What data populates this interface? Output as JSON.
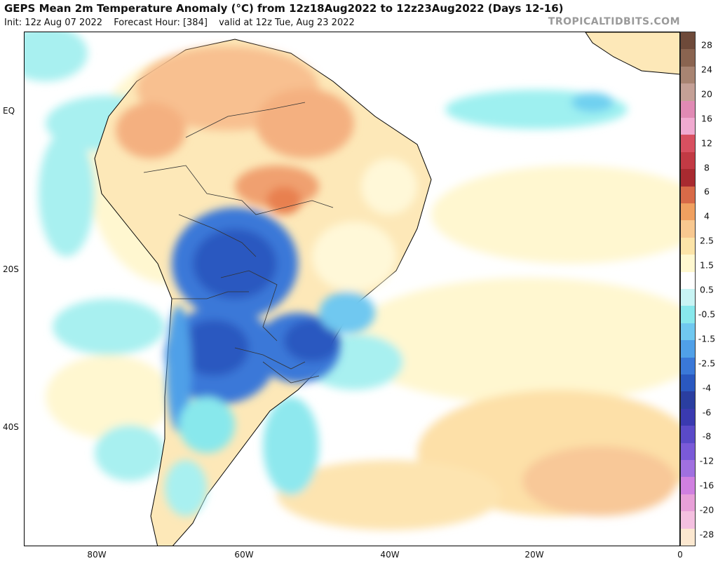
{
  "title": "GEPS Mean 2m Temperature Anomaly (°C) from 12z18Aug2022 to 12z23Aug2022 (Days 12-16)",
  "init": "Init: 12z Aug 07 2022",
  "forecast_hour": "Forecast Hour: [384]",
  "valid": "valid at 12z Tue, Aug 23 2022",
  "brand": "TROPICALTIDBITS.COM",
  "lat_labels": [
    "EQ",
    "20S",
    "40S"
  ],
  "lon_labels": [
    "80W",
    "60W",
    "40W",
    "20W",
    "0"
  ],
  "colorbar": {
    "labels": [
      "28",
      "24",
      "20",
      "16",
      "12",
      "8",
      "6",
      "4",
      "2.5",
      "1.5",
      "0.5",
      "-0.5",
      "-1.5",
      "-2.5",
      "-4",
      "-6",
      "-8",
      "-12",
      "-16",
      "-20",
      "-28"
    ],
    "colors": [
      "#6e4a3a",
      "#8a6450",
      "#a88472",
      "#c4a096",
      "#e08ab4",
      "#f0aad0",
      "#d85060",
      "#c23a44",
      "#a82a30",
      "#d86a48",
      "#f0a060",
      "#f8c890",
      "#fce4a8",
      "#fff8d0",
      "#ffffff",
      "#c8f4f4",
      "#88e8ec",
      "#70c8f0",
      "#50a0e8",
      "#3a78d8",
      "#2a58c0",
      "#2a3ea0",
      "#3a3ab0",
      "#5a4ac8",
      "#7a5ad8",
      "#a070e0",
      "#d080e0",
      "#e8a0d8",
      "#f4c0e0",
      "#fce8d0"
    ]
  }
}
